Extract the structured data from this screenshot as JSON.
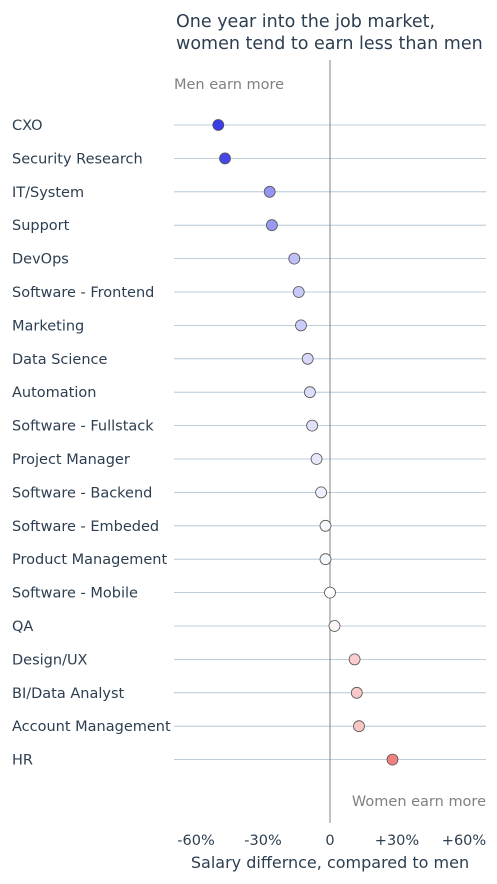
{
  "chart_data": {
    "type": "scatter",
    "title_lines": [
      "One year into the job market,",
      "women tend to earn less than men"
    ],
    "xlabel": "Salary differnce, compared to men",
    "xlim": [
      -60,
      60
    ],
    "x_ticks": [
      {
        "value": -60,
        "label": "-60%"
      },
      {
        "value": -30,
        "label": "-30%"
      },
      {
        "value": 0,
        "label": "0"
      },
      {
        "value": 30,
        "label": "+30%"
      },
      {
        "value": 60,
        "label": "+60%"
      }
    ],
    "annotations": {
      "left": "Men earn more",
      "right": "Women earn more"
    },
    "categories": [
      "CXO",
      "Security Research",
      "IT/System",
      "Support",
      "DevOps",
      "Software - Frontend",
      "Marketing",
      "Data Science",
      "Automation",
      "Software - Fullstack",
      "Project Manager",
      "Software - Backend",
      "Software - Embeded",
      "Product Management",
      "Software - Mobile",
      "QA",
      "Design/UX",
      "BI/Data Analyst",
      "Account Management",
      "HR"
    ],
    "values": [
      -50,
      -47,
      -27,
      -26,
      -16,
      -14,
      -13,
      -10,
      -9,
      -8,
      -6,
      -4,
      -2,
      -2,
      0,
      2,
      11,
      12,
      13,
      28
    ],
    "colors": {
      "negative_max": "#3b3be8",
      "neutral": "#ffffff",
      "positive_max": "#f08080",
      "gridline": "#a9bfd0",
      "zero_line": "#808080"
    }
  }
}
